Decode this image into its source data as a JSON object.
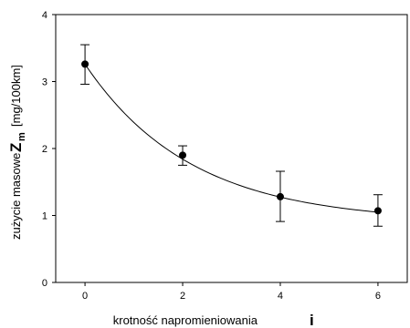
{
  "chart_data": {
    "type": "scatter",
    "xlabel": {
      "text": "krotność napromieniowania",
      "symbol": "i"
    },
    "ylabel": {
      "text": "zużycie masowe",
      "symbol": "Z",
      "subscript": "m",
      "unit": "[mg/100km]"
    },
    "xlim": [
      -0.6,
      6.6
    ],
    "ylim": [
      0,
      4
    ],
    "xticks": [
      "0",
      "2",
      "4",
      "6"
    ],
    "yticks": [
      "0",
      "1",
      "2",
      "3",
      "4"
    ],
    "grid": false,
    "series": [
      {
        "points": [
          {
            "x": 0,
            "y": 3.26,
            "err_low": 2.96,
            "err_high": 3.55
          },
          {
            "x": 2,
            "y": 1.9,
            "err_low": 1.75,
            "err_high": 2.04
          },
          {
            "x": 4,
            "y": 1.28,
            "err_low": 0.91,
            "err_high": 1.66
          },
          {
            "x": 6,
            "y": 1.07,
            "err_low": 0.84,
            "err_high": 1.31
          }
        ]
      }
    ],
    "fit_curve": {
      "type": "exponential-decay",
      "plateau": 0.9,
      "amplitude": 2.36,
      "rate": 0.46
    }
  }
}
